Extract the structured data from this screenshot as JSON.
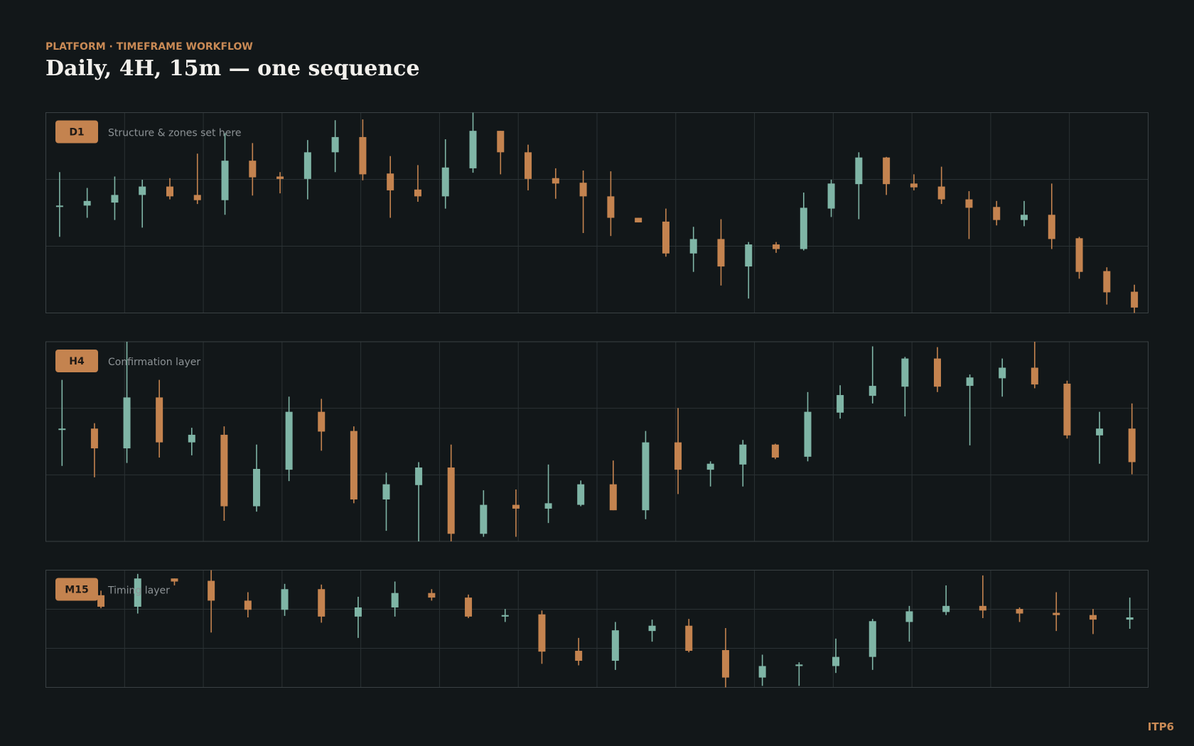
{
  "header": {
    "eyebrow": "PLATFORM · TIMEFRAME WORKFLOW",
    "title": "Daily, 4H, 15m — one sequence"
  },
  "footer": "ITP6",
  "chart_data": [
    {
      "type": "candlestick",
      "badge": "D1",
      "subtitle": "Structure & zones set here",
      "up_color": "#7fb5a6",
      "down_color": "#c4834f",
      "ylim": [
        0,
        100
      ],
      "grid": true,
      "open": [
        53.2,
        53.6,
        55.1,
        58.9,
        63.1,
        58.9,
        56.3,
        76.0,
        68.1,
        66.9,
        80.2,
        87.8,
        69.6,
        61.6,
        58.2,
        72.2,
        90.9,
        80.2,
        67.3,
        65.0,
        58.2,
        47.5,
        45.6,
        29.7,
        36.9,
        23.2,
        34.2,
        31.9,
        52.1,
        64.3,
        77.6,
        64.6,
        63.1,
        56.7,
        52.9,
        46.4,
        49.0,
        37.3,
        20.9,
        10.6
      ],
      "high": [
        70.3,
        62.4,
        68.1,
        66.5,
        67.3,
        79.5,
        89.7,
        84.8,
        70.3,
        86.3,
        96.2,
        96.6,
        78.3,
        73.8,
        86.7,
        100,
        90.9,
        84.0,
        72.2,
        71.1,
        70.7,
        47.5,
        52.1,
        43.0,
        46.8,
        35.4,
        35.4,
        60.1,
        66.5,
        80.2,
        77.9,
        69.2,
        73.0,
        60.8,
        55.9,
        55.9,
        64.6,
        38.0,
        22.8,
        14.1
      ],
      "low": [
        38.0,
        47.5,
        46.4,
        42.6,
        56.7,
        54.4,
        49.0,
        58.6,
        59.7,
        56.7,
        70.3,
        66.2,
        47.5,
        55.5,
        52.1,
        70.0,
        69.2,
        61.2,
        57.0,
        39.9,
        38.4,
        45.2,
        28.1,
        20.5,
        13.7,
        7.2,
        30.0,
        31.2,
        47.9,
        46.8,
        58.9,
        61.2,
        54.4,
        36.9,
        43.7,
        43.3,
        31.9,
        17.1,
        4.2,
        0
      ],
      "close": [
        53.6,
        55.9,
        58.9,
        63.1,
        58.2,
        56.3,
        76.0,
        67.7,
        66.9,
        80.2,
        87.8,
        69.2,
        61.2,
        58.2,
        72.6,
        90.9,
        80.2,
        66.9,
        64.6,
        58.2,
        47.5,
        45.2,
        29.7,
        36.9,
        23.2,
        34.2,
        31.9,
        52.5,
        64.6,
        77.6,
        64.3,
        62.7,
        56.7,
        52.5,
        46.4,
        49.0,
        36.9,
        20.5,
        10.3,
        2.7
      ]
    },
    {
      "type": "candlestick",
      "badge": "H4",
      "subtitle": "Confirmation layer",
      "up_color": "#7fb5a6",
      "down_color": "#c4834f",
      "ylim": [
        0,
        100
      ],
      "grid": true,
      "open": [
        56.1,
        56.5,
        46.6,
        72.1,
        49.6,
        53.4,
        17.6,
        35.9,
        64.9,
        55.3,
        21.0,
        28.2,
        37.0,
        3.8,
        18.3,
        16.4,
        18.3,
        28.6,
        15.6,
        49.6,
        35.9,
        38.5,
        48.5,
        42.4,
        64.5,
        72.9,
        77.5,
        91.6,
        77.9,
        81.7,
        87.0,
        79.0,
        53.1,
        56.5
      ],
      "high": [
        80.9,
        59.2,
        100,
        80.9,
        56.9,
        57.6,
        48.5,
        72.5,
        71.4,
        57.6,
        34.4,
        39.7,
        48.5,
        25.6,
        26.0,
        38.5,
        30.5,
        40.5,
        55.3,
        66.8,
        40.1,
        50.8,
        48.9,
        74.8,
        78.2,
        97.7,
        92.4,
        97.3,
        83.6,
        91.6,
        100,
        80.5,
        64.9,
        69.1
      ],
      "low": [
        37.8,
        32.1,
        39.3,
        42.0,
        43.1,
        10.3,
        14.9,
        30.2,
        45.4,
        19.1,
        5.3,
        0,
        0,
        2.3,
        2.3,
        9.2,
        17.6,
        15.6,
        11.1,
        23.7,
        27.5,
        27.5,
        41.2,
        40.1,
        61.5,
        69.1,
        62.6,
        74.8,
        48.1,
        72.5,
        76.7,
        51.5,
        38.9,
        33.6
      ],
      "close": [
        56.5,
        46.6,
        72.1,
        49.6,
        53.4,
        17.6,
        36.3,
        64.9,
        55.0,
        21.0,
        28.6,
        37.0,
        3.8,
        18.3,
        16.4,
        19.1,
        28.6,
        15.6,
        49.6,
        35.9,
        38.9,
        48.5,
        42.0,
        64.9,
        73.3,
        77.9,
        91.6,
        77.5,
        82.1,
        87.0,
        78.6,
        53.1,
        56.5,
        39.7
      ]
    },
    {
      "type": "candlestick",
      "badge": "M15",
      "subtitle": "Timing layer",
      "up_color": "#7fb5a6",
      "down_color": "#c4834f",
      "ylim": [
        0,
        100
      ],
      "grid": true,
      "open": [
        78.6,
        68.8,
        92.9,
        90.9,
        74.0,
        66.2,
        83.8,
        60.4,
        68.2,
        80.5,
        76.6,
        60.4,
        62.3,
        31.2,
        22.7,
        48.1,
        52.6,
        31.8,
        8.4,
        18.2,
        18.2,
        26.0,
        55.8,
        64.3,
        69.5,
        66.9,
        63.6,
        61.7,
        57.8
      ],
      "high": [
        82.5,
        96.8,
        92.9,
        100,
        81.2,
        88.3,
        87.7,
        77.3,
        90.3,
        83.8,
        79.2,
        66.9,
        65.6,
        42.2,
        55.8,
        57.8,
        58.4,
        50.6,
        27.9,
        21.4,
        41.6,
        58.4,
        69.5,
        87.0,
        95.5,
        68.2,
        81.2,
        66.9,
        76.6
      ],
      "low": [
        67.5,
        63.0,
        87.0,
        46.8,
        59.7,
        61.0,
        55.2,
        42.2,
        60.4,
        74.0,
        59.1,
        55.8,
        20.1,
        18.8,
        14.9,
        39.0,
        29.9,
        0,
        1.3,
        1.3,
        12.3,
        14.9,
        39.0,
        61.7,
        59.1,
        55.8,
        48.1,
        45.5,
        50.0
      ],
      "close": [
        68.8,
        92.9,
        90.3,
        74.0,
        66.2,
        83.8,
        60.4,
        68.2,
        80.5,
        76.6,
        60.4,
        61.7,
        30.5,
        22.7,
        48.7,
        52.6,
        31.2,
        8.4,
        18.2,
        19.5,
        26.0,
        56.5,
        64.9,
        69.5,
        65.6,
        63.0,
        61.7,
        57.8,
        59.7
      ]
    }
  ]
}
